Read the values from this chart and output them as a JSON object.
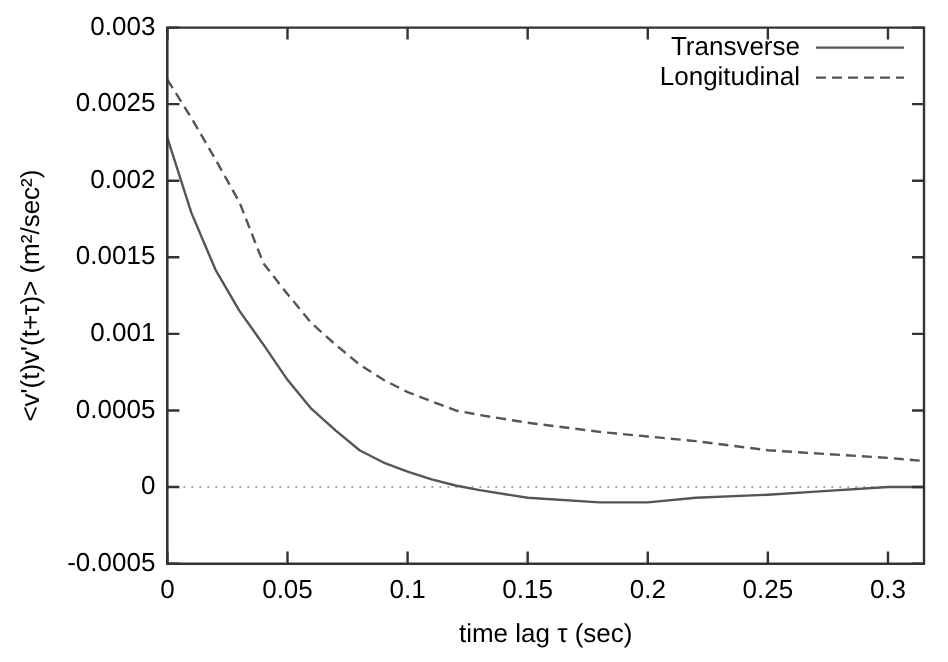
{
  "chart_data": {
    "type": "line",
    "xlabel": "time lag τ (sec)",
    "ylabel": "<v'(t)v'(t+τ)> (m²/sec²)",
    "x": [
      0,
      0.01,
      0.02,
      0.03,
      0.04,
      0.05,
      0.06,
      0.07,
      0.08,
      0.09,
      0.1,
      0.11,
      0.12,
      0.13,
      0.15,
      0.18,
      0.2,
      0.22,
      0.25,
      0.27,
      0.3,
      0.315
    ],
    "series": [
      {
        "name": "Transverse",
        "color": "#555555",
        "line_style": "solid",
        "values": [
          0.00228,
          0.00179,
          0.00142,
          0.00115,
          0.00093,
          0.0007,
          0.00051,
          0.00037,
          0.00024,
          0.00016,
          0.0001,
          5e-05,
          1e-05,
          -2e-05,
          -7e-05,
          -0.0001,
          -0.0001,
          -7e-05,
          -5e-05,
          -3e-05,
          0,
          0
        ]
      },
      {
        "name": "Longitudinal",
        "color": "#555555",
        "line_style": "dashed",
        "values": [
          0.00266,
          0.00241,
          0.00214,
          0.00186,
          0.00146,
          0.00126,
          0.00107,
          0.00093,
          0.0008,
          0.0007,
          0.00062,
          0.00056,
          0.0005,
          0.00047,
          0.00042,
          0.00036,
          0.00033,
          0.0003,
          0.00024,
          0.00022,
          0.00019,
          0.00017
        ]
      }
    ],
    "xlim": [
      0,
      0.315
    ],
    "xticks": [
      0,
      0.05,
      0.1,
      0.15,
      0.2,
      0.25,
      0.3
    ],
    "ylim": [
      -0.0005,
      0.003
    ],
    "yticks": [
      -0.0005,
      0,
      0.0005,
      0.001,
      0.0015,
      0.002,
      0.0025,
      0.003
    ],
    "ref_lines": [
      {
        "axis": "y",
        "value": 0,
        "color": "#aaaaaa",
        "line_style": "dotted"
      }
    ],
    "grid": false,
    "legend": "top right",
    "marker": "none"
  }
}
